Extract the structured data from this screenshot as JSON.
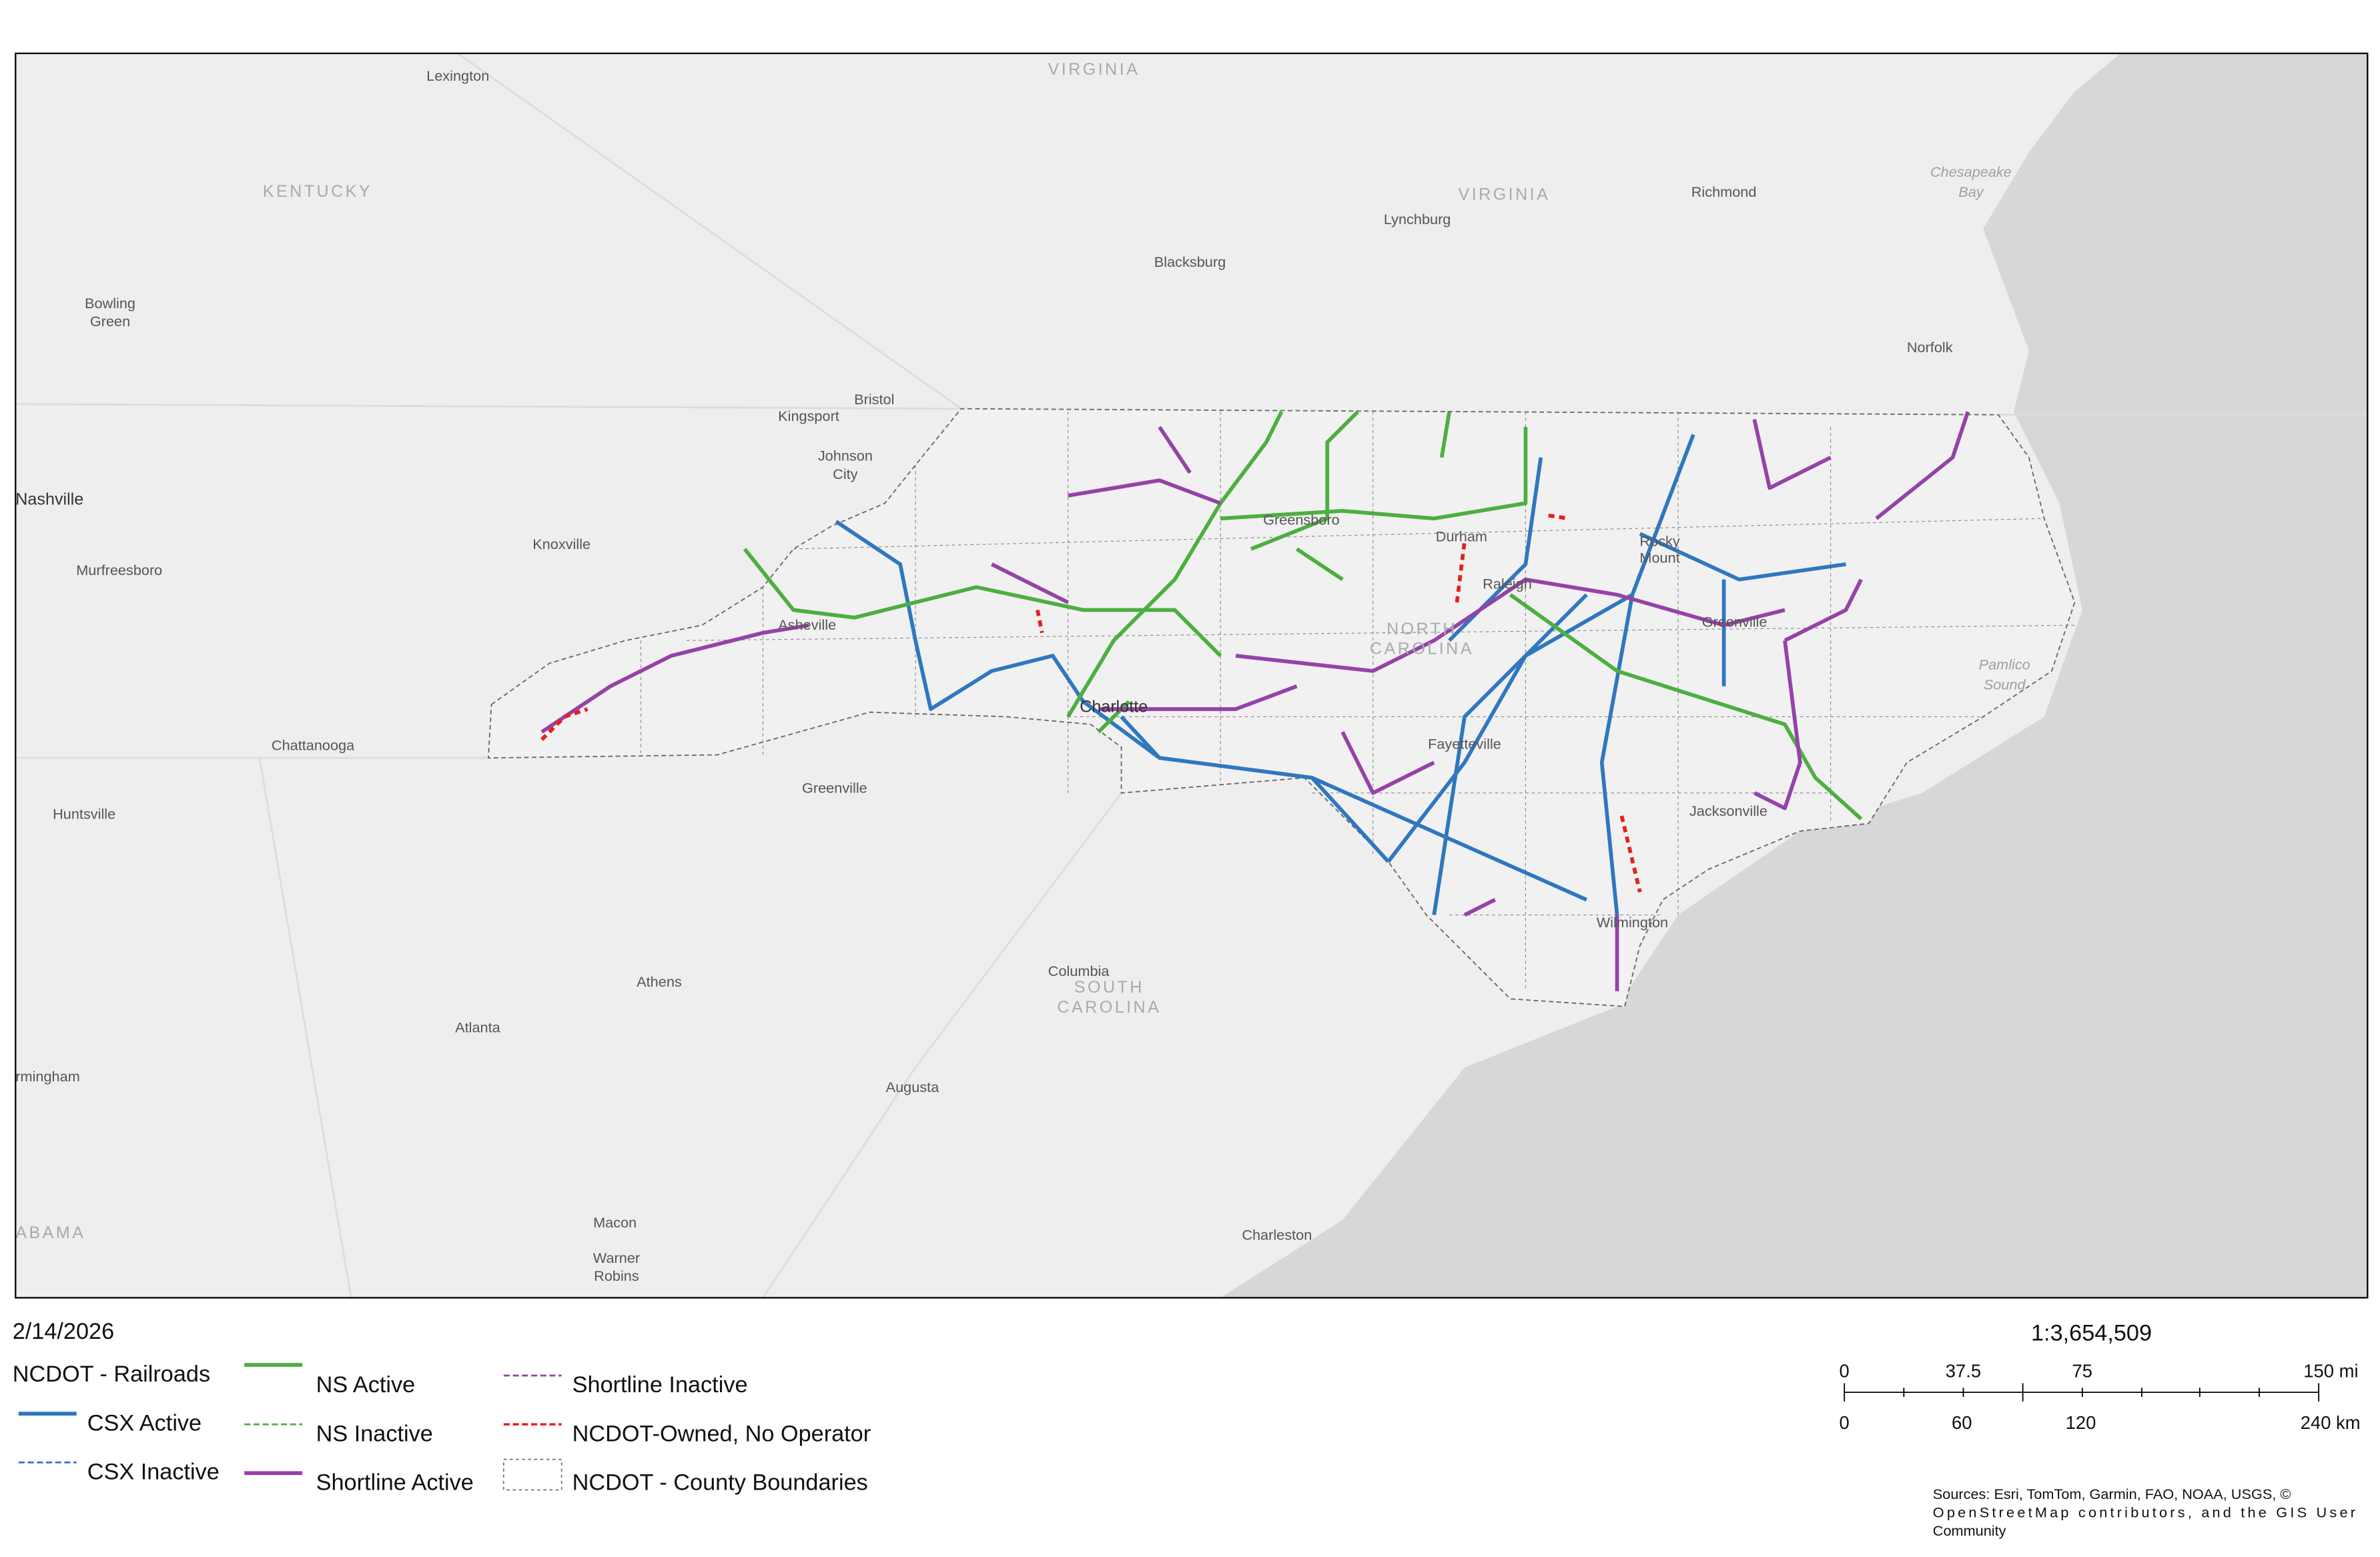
{
  "map": {
    "labels": [
      "VIRGINIA",
      "Lexington",
      "KENTUCKY",
      "VIRGINIA",
      "Lynchburg",
      "Richmond",
      "Chesapeake",
      "Bay",
      "Bowling",
      "Green",
      "Blacksburg",
      "Norfolk",
      "Bristol",
      "Kingsport",
      "Johnson",
      "City",
      "Nashville",
      "Knoxville",
      "Murfreesboro",
      "Greensboro",
      "Durham",
      "Rocky",
      "Mount",
      "Raleigh",
      "NORTH",
      "CAROLINA",
      "Asheville",
      "Greenville",
      "Pamlico",
      "Sound",
      "Charlotte",
      "Fayetteville",
      "Chattanooga",
      "Greenville",
      "Jacksonville",
      "Huntsville",
      "Wilmington",
      "Columbia",
      "SOUTH",
      "CAROLINA",
      "Athens",
      "Atlanta",
      "rmingham",
      "Augusta",
      "Macon",
      "Warner",
      "Robins",
      "Charleston",
      "ABAMA"
    ]
  },
  "footer": {
    "date": "2/14/2026",
    "scale": "1:3,654,509",
    "scalebar_top": [
      "0",
      "37.5",
      "75",
      "150 mi"
    ],
    "scalebar_bottom": [
      "0",
      "60",
      "120",
      "240 km"
    ],
    "sources": [
      "Sources: Esri, TomTom, Garmin, FAO, NOAA, USGS, ©",
      "OpenStreetMap contributors, and the GIS User",
      "Community"
    ]
  },
  "legend": {
    "title": "NCDOT - Railroads",
    "items": [
      "CSX Active",
      "CSX Inactive",
      "NS Active",
      "NS Inactive",
      "Shortline Active",
      "Shortline Inactive",
      "NCDOT-Owned, No Operator",
      "NCDOT - County Boundaries"
    ]
  }
}
